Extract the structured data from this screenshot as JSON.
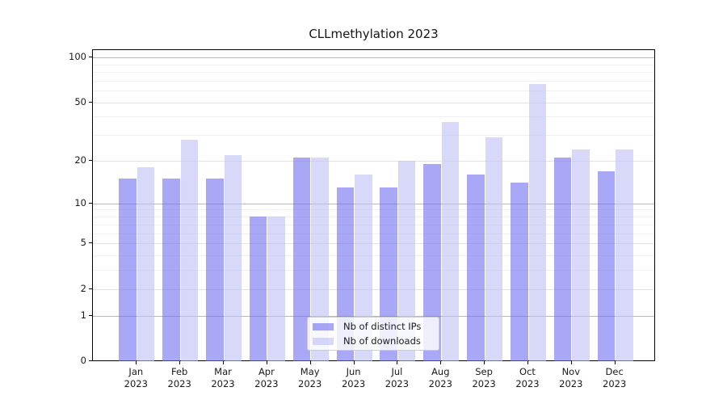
{
  "chart_data": {
    "type": "bar",
    "title": "CLLmethylation 2023",
    "categories": [
      "Jan",
      "Feb",
      "Mar",
      "Apr",
      "May",
      "Jun",
      "Jul",
      "Aug",
      "Sep",
      "Oct",
      "Nov",
      "Dec"
    ],
    "category_year": "2023",
    "series": [
      {
        "name": "Nb of distinct IPs",
        "values": [
          15,
          15,
          15,
          8,
          21,
          13,
          13,
          19,
          16,
          14,
          21,
          17
        ],
        "color": "rgba(110,110,240,0.6)"
      },
      {
        "name": "Nb of downloads",
        "values": [
          18,
          28,
          22,
          8,
          21,
          16,
          20,
          37,
          29,
          66,
          24,
          24
        ],
        "color": "rgba(190,190,245,0.6)"
      }
    ],
    "yscale": "log1p",
    "yticks": [
      0,
      1,
      2,
      5,
      10,
      20,
      50,
      100
    ],
    "ytick_labels": [
      "0",
      "1",
      "2",
      "5",
      "10",
      "20",
      "50",
      "100"
    ],
    "grid_mid_lines": [
      2,
      5,
      20,
      50
    ],
    "grid_major_lines": [
      1,
      10,
      100
    ],
    "grid_minor_lines": [
      3,
      4,
      6,
      7,
      8,
      9,
      30,
      40,
      60,
      70,
      80,
      90
    ],
    "ylim": [
      0,
      112
    ],
    "grid": true,
    "legend_position": "bottom-center"
  },
  "colors": {
    "bar_ips": "rgba(110,110,240,0.6)",
    "bar_ips_on_white": "#a9a9f5",
    "bar_downloads": "rgba(190,190,245,0.6)",
    "bar_downloads_on_white": "#d9d9f8",
    "grid_major": "#b9b9b9",
    "grid_mid": "#e3e3e3",
    "grid_minor": "#efefef",
    "axis": "#000000",
    "background": "#ffffff"
  }
}
